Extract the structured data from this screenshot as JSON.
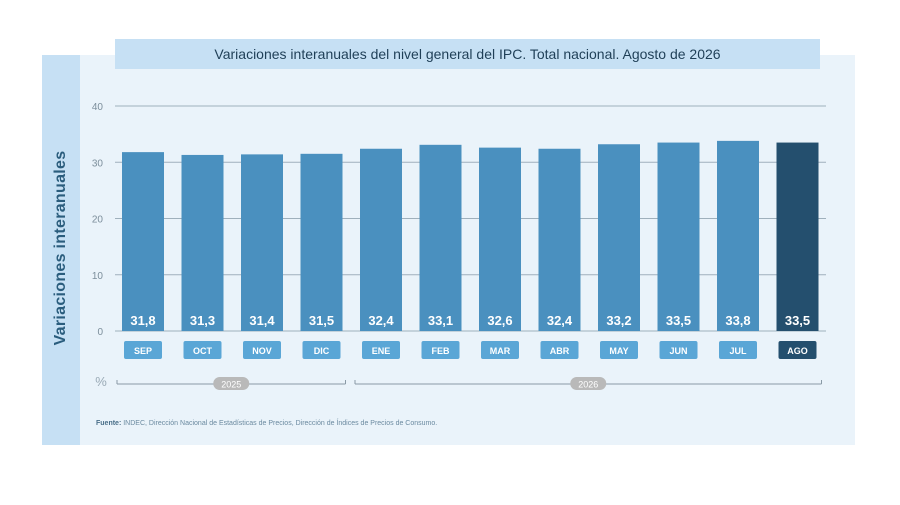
{
  "chart_data": {
    "type": "bar",
    "title": "Variaciones interanuales del nivel general del IPC. Total nacional. Agosto de 2026",
    "ylabel": "Variaciones interanuales",
    "yunit": "%",
    "ylim": [
      0,
      40
    ],
    "yticks": [
      "0",
      "10",
      "20",
      "30",
      "40"
    ],
    "grid": true,
    "categories": [
      "SEP",
      "OCT",
      "NOV",
      "DIC",
      "ENE",
      "FEB",
      "MAR",
      "ABR",
      "MAY",
      "JUN",
      "JUL",
      "AGO"
    ],
    "values": [
      31.8,
      31.3,
      31.4,
      31.5,
      32.4,
      33.1,
      32.6,
      32.4,
      33.2,
      33.5,
      33.8,
      33.5
    ],
    "value_labels": [
      "31,8",
      "31,3",
      "31,4",
      "31,5",
      "32,4",
      "33,1",
      "32,6",
      "32,4",
      "33,2",
      "33,5",
      "33,8",
      "33,5"
    ],
    "year_groups": [
      {
        "label": "2025",
        "start": 0,
        "end": 3
      },
      {
        "label": "2026",
        "start": 4,
        "end": 11
      }
    ],
    "highlight_index": 11,
    "colors": {
      "bar": "#4a90bf",
      "bar_highlight": "#244f6e",
      "month_badge": "#5aa6d6",
      "month_badge_highlight": "#244f6e",
      "year_badge": "#b9b9b9"
    }
  },
  "source": {
    "label": "Fuente:",
    "text": "INDEC, Dirección Nacional de Estadísticas de Precios, Dirección de Índices de Precios de Consumo."
  }
}
